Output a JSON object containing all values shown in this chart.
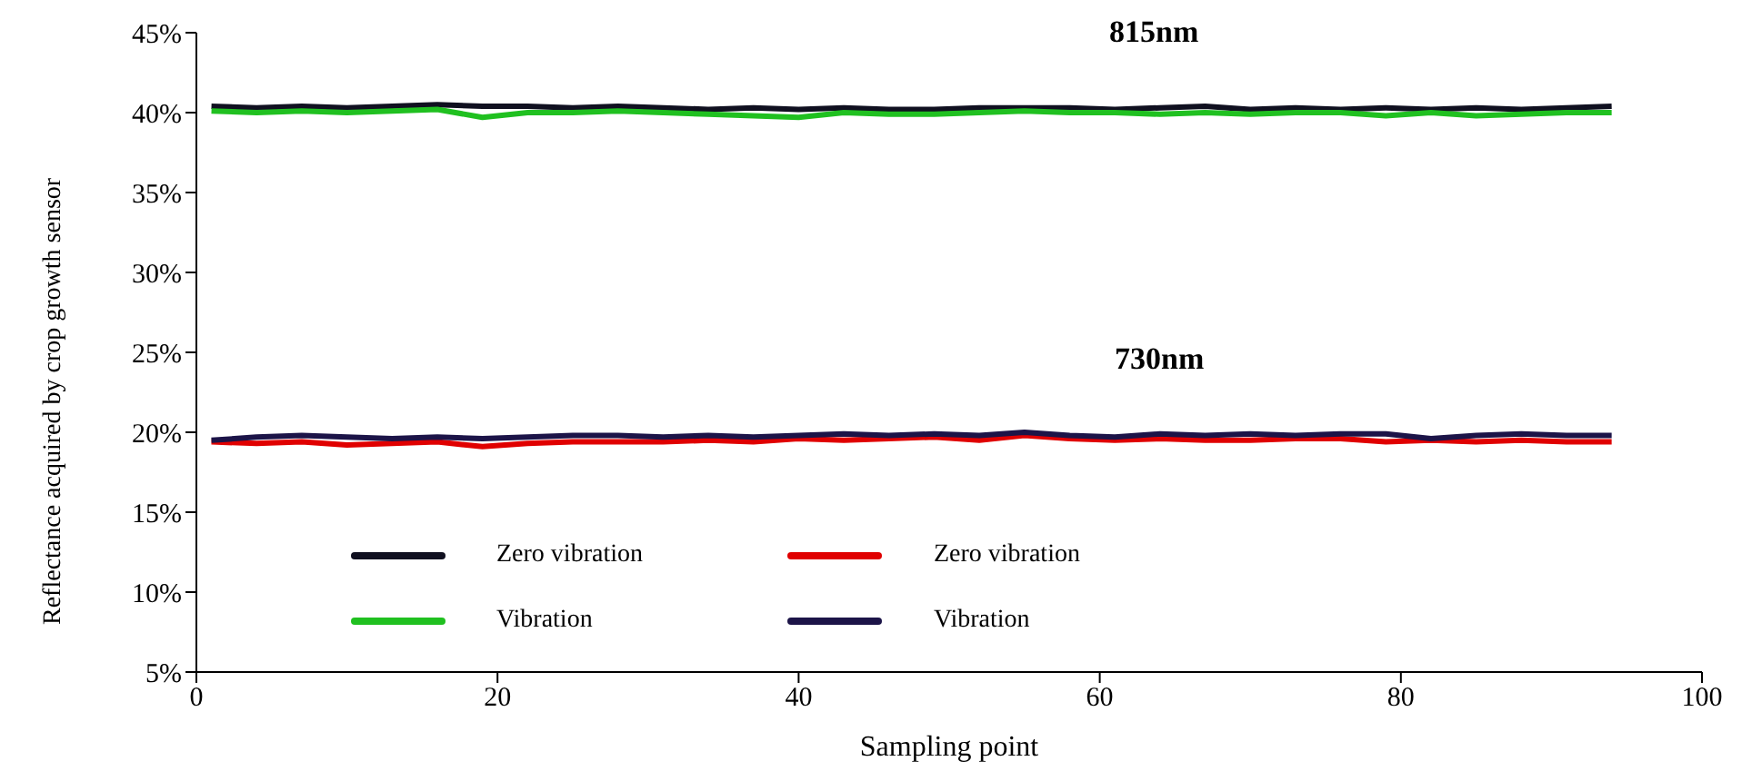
{
  "chart_data": {
    "type": "line",
    "xlabel": "Sampling  point",
    "ylabel": "Reflectance  acquired by crop growth sensor",
    "x": [
      1,
      4,
      7,
      10,
      13,
      16,
      19,
      22,
      25,
      28,
      31,
      34,
      37,
      40,
      43,
      46,
      49,
      52,
      55,
      58,
      61,
      64,
      67,
      70,
      73,
      76,
      79,
      82,
      85,
      88,
      91,
      94
    ],
    "series": [
      {
        "name": "Zero vibration",
        "color": "#101020",
        "values": [
          40.4,
          40.3,
          40.4,
          40.3,
          40.4,
          40.5,
          40.4,
          40.4,
          40.3,
          40.4,
          40.3,
          40.2,
          40.3,
          40.2,
          40.3,
          40.2,
          40.2,
          40.3,
          40.3,
          40.3,
          40.2,
          40.3,
          40.4,
          40.2,
          40.3,
          40.2,
          40.3,
          40.2,
          40.3,
          40.2,
          40.3,
          40.4
        ]
      },
      {
        "name": "Vibration",
        "color": "#20c020",
        "values": [
          40.1,
          40.0,
          40.1,
          40.0,
          40.1,
          40.2,
          39.7,
          40.0,
          40.0,
          40.1,
          40.0,
          39.9,
          39.8,
          39.7,
          40.0,
          39.9,
          39.9,
          40.0,
          40.1,
          40.0,
          40.0,
          39.9,
          40.0,
          39.9,
          40.0,
          40.0,
          39.8,
          40.0,
          39.8,
          39.9,
          40.0,
          40.0
        ]
      },
      {
        "name": "Zero vibration",
        "color": "#e00000",
        "values": [
          19.4,
          19.3,
          19.4,
          19.2,
          19.3,
          19.4,
          19.1,
          19.3,
          19.4,
          19.4,
          19.4,
          19.5,
          19.4,
          19.6,
          19.5,
          19.6,
          19.7,
          19.5,
          19.8,
          19.6,
          19.5,
          19.6,
          19.5,
          19.5,
          19.6,
          19.6,
          19.4,
          19.5,
          19.4,
          19.5,
          19.4,
          19.4
        ]
      },
      {
        "name": "Vibration",
        "color": "#1c1448",
        "values": [
          19.5,
          19.7,
          19.8,
          19.7,
          19.6,
          19.7,
          19.6,
          19.7,
          19.8,
          19.8,
          19.7,
          19.8,
          19.7,
          19.8,
          19.9,
          19.8,
          19.9,
          19.8,
          20.0,
          19.8,
          19.7,
          19.9,
          19.8,
          19.9,
          19.8,
          19.9,
          19.9,
          19.6,
          19.8,
          19.9,
          19.8,
          19.8
        ]
      }
    ],
    "xlim": [
      0,
      100
    ],
    "xticks": [
      0,
      20,
      40,
      60,
      80,
      100
    ],
    "ylim": [
      5,
      45
    ],
    "yticks": [
      {
        "value": 5,
        "label": "5%"
      },
      {
        "value": 10,
        "label": "10%"
      },
      {
        "value": 15,
        "label": "15%"
      },
      {
        "value": 20,
        "label": "20%"
      },
      {
        "value": 25,
        "label": "25%"
      },
      {
        "value": 30,
        "label": "30%"
      },
      {
        "value": 35,
        "label": "35%"
      },
      {
        "value": 40,
        "label": "40%"
      },
      {
        "value": 45,
        "label": "45%"
      }
    ],
    "annotations": [
      "815nm",
      "730nm"
    ],
    "legend": "bottom",
    "grid": false,
    "marker": "none",
    "line_style": "solid"
  }
}
